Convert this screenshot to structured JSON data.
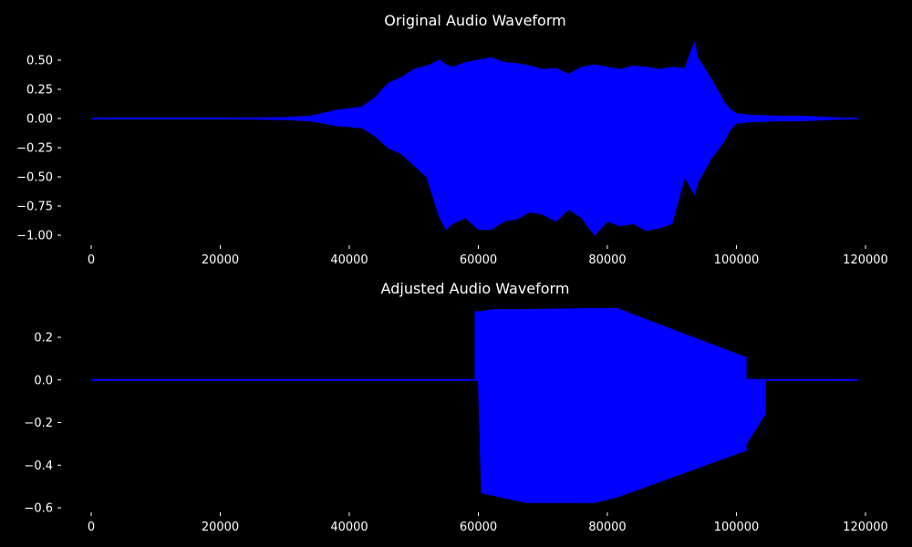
{
  "colors": {
    "background": "#000000",
    "series": "#0000ff",
    "text": "#ffffff"
  },
  "chart_data": [
    {
      "type": "area",
      "title": "Original Audio Waveform",
      "xlabel": "",
      "ylabel": "",
      "xlim": [
        0,
        118800
      ],
      "ylim": [
        -1.0,
        0.65
      ],
      "xticks": [
        "0",
        "20000",
        "40000",
        "60000",
        "80000",
        "100000",
        "120000"
      ],
      "yticks": [
        "0.50",
        "0.25",
        "0.00",
        "−0.25",
        "−0.50",
        "−0.75",
        "−1.00"
      ],
      "envelope": {
        "x": [
          0,
          25000,
          30000,
          34000,
          38000,
          42000,
          44000,
          46000,
          48000,
          50000,
          52000,
          54000,
          55000,
          56000,
          58000,
          60000,
          62000,
          64000,
          66000,
          68000,
          70000,
          72000,
          74000,
          76000,
          78000,
          80000,
          82000,
          84000,
          86000,
          88000,
          90000,
          92000,
          93500,
          94000,
          96000,
          98000,
          99000,
          100000,
          102000,
          106000,
          110000,
          114000,
          118800
        ],
        "upper": [
          0.0,
          0.005,
          0.01,
          0.02,
          0.07,
          0.1,
          0.18,
          0.3,
          0.35,
          0.42,
          0.45,
          0.5,
          0.46,
          0.44,
          0.48,
          0.5,
          0.52,
          0.48,
          0.47,
          0.45,
          0.42,
          0.43,
          0.38,
          0.44,
          0.46,
          0.44,
          0.42,
          0.45,
          0.44,
          0.42,
          0.44,
          0.43,
          0.65,
          0.52,
          0.35,
          0.15,
          0.08,
          0.04,
          0.03,
          0.02,
          0.02,
          0.01,
          0.0
        ],
        "lower": [
          0.0,
          -0.005,
          -0.01,
          -0.02,
          -0.06,
          -0.08,
          -0.15,
          -0.25,
          -0.3,
          -0.4,
          -0.5,
          -0.85,
          -0.95,
          -0.9,
          -0.85,
          -0.95,
          -0.95,
          -0.88,
          -0.86,
          -0.8,
          -0.82,
          -0.88,
          -0.78,
          -0.85,
          -1.0,
          -0.88,
          -0.92,
          -0.9,
          -0.96,
          -0.94,
          -0.9,
          -0.5,
          -0.65,
          -0.55,
          -0.35,
          -0.2,
          -0.1,
          -0.04,
          -0.03,
          -0.02,
          -0.02,
          -0.01,
          0.0
        ]
      }
    },
    {
      "type": "area",
      "title": "Adjusted Audio Waveform",
      "xlabel": "",
      "ylabel": "",
      "xlim": [
        0,
        118800
      ],
      "ylim": [
        -0.6,
        0.32
      ],
      "xticks": [
        "0",
        "20000",
        "40000",
        "60000",
        "80000",
        "100000",
        "120000"
      ],
      "yticks": [
        "0.2",
        "0.0",
        "−0.2",
        "−0.4",
        "−0.6"
      ],
      "envelope": {
        "x": [
          0,
          59500,
          59500,
          60000,
          60500,
          62000,
          67500,
          78000,
          81500,
          101500,
          101500,
          104500,
          104500,
          118800
        ],
        "upper": [
          0.0,
          0.0,
          0.32,
          0.32,
          0.32,
          0.33,
          0.33,
          0.335,
          0.335,
          0.105,
          0.0,
          0.0,
          0.0,
          0.0
        ],
        "lower": [
          0.0,
          0.0,
          0.0,
          0.0,
          -0.53,
          -0.54,
          -0.575,
          -0.575,
          -0.55,
          -0.33,
          -0.3,
          -0.16,
          0.0,
          0.0
        ]
      }
    }
  ]
}
